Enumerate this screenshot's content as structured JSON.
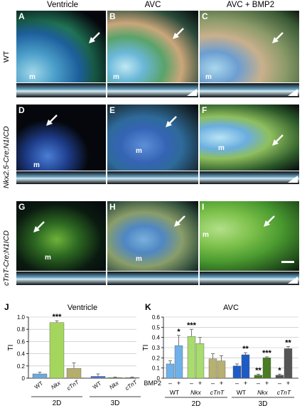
{
  "columns": [
    "Ventricle",
    "AVC",
    "AVC + BMP2"
  ],
  "rows": [
    "WT",
    "Nkx2.5-Cre;N1ICD",
    "cTnT-Cre;N1ICD"
  ],
  "panels": [
    {
      "id": "A",
      "m": true,
      "triangle": false,
      "palette": "vent_wt"
    },
    {
      "id": "B",
      "m": true,
      "triangle": true,
      "palette": "avc_wt"
    },
    {
      "id": "C",
      "m": true,
      "triangle": true,
      "palette": "bmp_wt"
    },
    {
      "id": "D",
      "m": true,
      "triangle": false,
      "palette": "vent_nkx"
    },
    {
      "id": "E",
      "m": true,
      "triangle": false,
      "palette": "avc_nkx"
    },
    {
      "id": "F",
      "m": true,
      "triangle": true,
      "palette": "bmp_nkx"
    },
    {
      "id": "G",
      "m": true,
      "triangle": false,
      "palette": "vent_ctnt"
    },
    {
      "id": "H",
      "m": true,
      "triangle": false,
      "palette": "avc_ctnt"
    },
    {
      "id": "I",
      "m": true,
      "triangle": true,
      "palette": "bmp_ctnt"
    }
  ],
  "m_label": "m",
  "chart_data": [
    {
      "panel": "J",
      "type": "bar",
      "title": "Ventricle",
      "ylabel": "TI",
      "ylim": [
        0,
        1.0
      ],
      "yticks": [
        "0",
        "0.2",
        "0.4",
        "0.6",
        "0.8",
        "1.0"
      ],
      "ytick_values": [
        0,
        0.2,
        0.4,
        0.6,
        0.8,
        1.0
      ],
      "grid": true,
      "groups": [
        {
          "label": "2D",
          "bars": [
            {
              "category": "WT",
              "value": 0.07,
              "err": 0.03,
              "color": "#6fa8dc",
              "sig": ""
            },
            {
              "category": "Nkx",
              "value": 0.91,
              "err": 0.03,
              "color": "#a4d65e",
              "sig": "***"
            },
            {
              "category": "cTnT",
              "value": 0.16,
              "err": 0.09,
              "color": "#b4ad6c",
              "sig": ""
            }
          ]
        },
        {
          "label": "3D",
          "bars": [
            {
              "category": "WT",
              "value": 0.03,
              "err": 0.04,
              "color": "#4a78c8",
              "sig": ""
            },
            {
              "category": "Nkx",
              "value": 0.01,
              "err": 0.01,
              "color": "#5b8a2d",
              "sig": ""
            },
            {
              "category": "cTnT",
              "value": 0.01,
              "err": 0.01,
              "color": "#7a7458",
              "sig": ""
            }
          ]
        }
      ]
    },
    {
      "panel": "K",
      "type": "bar",
      "title": "AVC",
      "ylabel": "TI",
      "ylim": [
        0,
        0.6
      ],
      "yticks": [
        "0",
        "0.1",
        "0.2",
        "0.3",
        "0.4",
        "0.5",
        "0.6"
      ],
      "ytick_values": [
        0,
        0.1,
        0.2,
        0.3,
        0.4,
        0.5,
        0.6
      ],
      "grid": true,
      "bmp2_label": "BMP2",
      "bmp2_states": [
        "–",
        "+"
      ],
      "groups": [
        {
          "label": "2D",
          "subgroups": [
            {
              "category": "WT",
              "bars": [
                {
                  "value": 0.14,
                  "err": 0.03,
                  "color": "#6fb0e8",
                  "sig": ""
                },
                {
                  "value": 0.32,
                  "err": 0.1,
                  "color": "#6fb0e8",
                  "sig": "*"
                }
              ]
            },
            {
              "category": "Nkx",
              "bars": [
                {
                  "value": 0.41,
                  "err": 0.07,
                  "color": "#a8dc6e",
                  "sig": "***"
                },
                {
                  "value": 0.34,
                  "err": 0.06,
                  "color": "#a8dc6e",
                  "sig": ""
                }
              ]
            },
            {
              "category": "cTnT",
              "bars": [
                {
                  "value": 0.19,
                  "err": 0.05,
                  "color": "#b8b070",
                  "sig": ""
                },
                {
                  "value": 0.17,
                  "err": 0.05,
                  "color": "#b8b070",
                  "sig": ""
                }
              ]
            }
          ]
        },
        {
          "label": "3D",
          "subgroups": [
            {
              "category": "WT",
              "bars": [
                {
                  "value": 0.12,
                  "err": 0.02,
                  "color": "#1e5bc6",
                  "sig": ""
                },
                {
                  "value": 0.23,
                  "err": 0.02,
                  "color": "#1e5bc6",
                  "sig": "**"
                }
              ]
            },
            {
              "category": "Nkx",
              "bars": [
                {
                  "value": 0.03,
                  "err": 0.01,
                  "color": "#4a7c23",
                  "sig": "**"
                },
                {
                  "value": 0.2,
                  "err": 0.01,
                  "color": "#4a7c23",
                  "sig": "***"
                }
              ]
            },
            {
              "category": "cTnT",
              "bars": [
                {
                  "value": 0.03,
                  "err": 0.01,
                  "color": "#555555",
                  "sig": "*"
                },
                {
                  "value": 0.29,
                  "err": 0.02,
                  "color": "#555555",
                  "sig": "**"
                }
              ]
            }
          ]
        }
      ]
    }
  ]
}
